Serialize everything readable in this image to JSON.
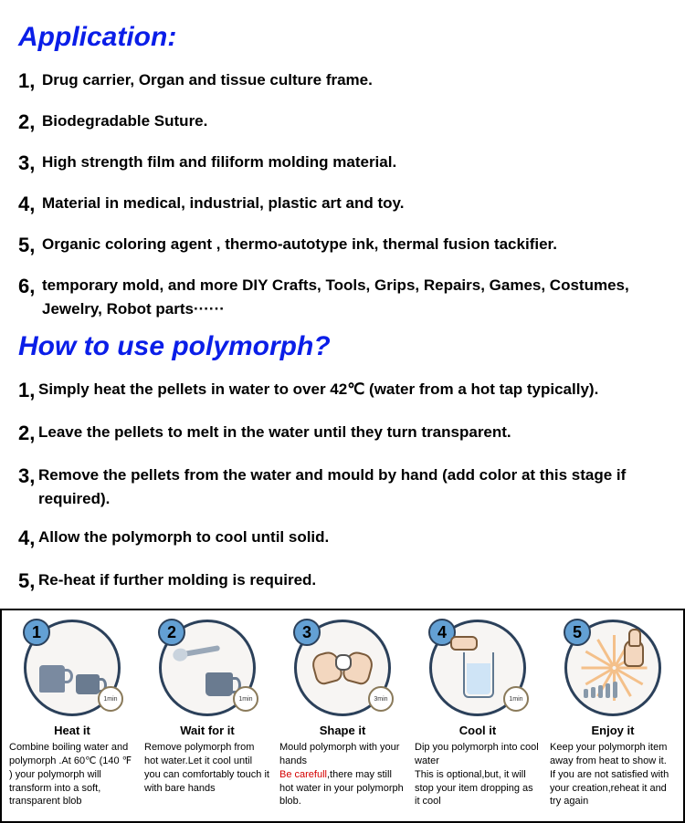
{
  "colors": {
    "heading": "#0a1ee8",
    "text": "#000000",
    "warn": "#d40000",
    "circle_border": "#2b405a",
    "badge_fill": "#63a0d4"
  },
  "sections": {
    "application": {
      "title": "Application:",
      "items": [
        "Drug carrier, Organ and tissue culture frame.",
        "Biodegradable Suture.",
        "High strength film and filiform molding material.",
        "Material in medical, industrial, plastic art and toy.",
        "Organic coloring agent , thermo-autotype ink, thermal fusion tackifier.",
        "temporary mold, and more DIY Crafts, Tools, Grips, Repairs, Games, Costumes, Jewelry, Robot parts······"
      ]
    },
    "howto": {
      "title": "How to use polymorph?",
      "items": [
        "Simply heat the pellets in water to over 42℃ (water from a hot tap typically).",
        "Leave the pellets to melt in the water until they turn transparent.",
        "Remove the pellets from the water and mould by hand (add color at this stage if required).",
        "Allow the polymorph to cool until solid.",
        "Re-heat if further molding is required."
      ]
    }
  },
  "infographic": {
    "steps": [
      {
        "num": "1",
        "timer": "1min",
        "title": "Heat it",
        "desc": "Combine boiling water and polymorph .At 60℃ (140 ℉ ) your polymorph will transform into a soft, transparent blob"
      },
      {
        "num": "2",
        "timer": "1min",
        "title": "Wait for it",
        "desc": "Remove polymorph from hot water.Let it cool until you can comfortably touch it with bare hands"
      },
      {
        "num": "3",
        "timer": "3min",
        "title": "Shape it",
        "desc_pre": "Mould polymorph with  your hands ",
        "warn": "Be carefull",
        "desc_post": ",there may still hot water in your polymorph blob."
      },
      {
        "num": "4",
        "timer": "1min",
        "title": "Cool it",
        "desc": "Dip you polymorph into cool water\nThis is optional,but, it will stop your item dropping as it cool"
      },
      {
        "num": "5",
        "timer": "",
        "title": "Enjoy it",
        "desc": "Keep your polymorph item away from heat to show it.\nIf you are not satisfied with your creation,reheat it  and try again"
      }
    ]
  }
}
